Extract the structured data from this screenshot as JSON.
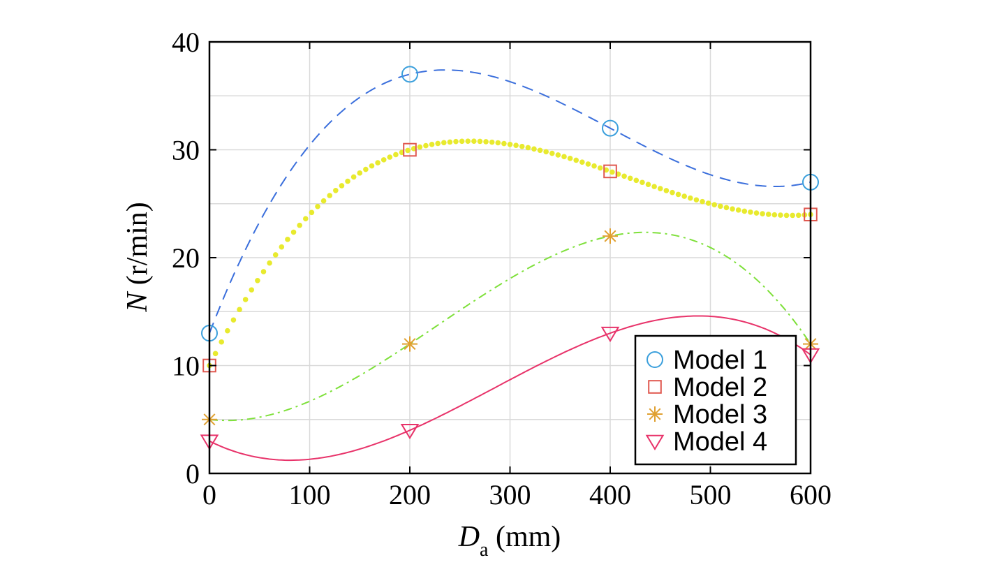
{
  "chart_data": {
    "type": "line",
    "title": "",
    "xlabel": {
      "main": "D",
      "sub": "a",
      "unit": "(mm)"
    },
    "ylabel": {
      "main": "N",
      "unit": "(r/min)"
    },
    "xlim": [
      0,
      600
    ],
    "ylim": [
      0,
      40
    ],
    "xticks": [
      0,
      100,
      200,
      300,
      400,
      500,
      600
    ],
    "yticks": [
      0,
      10,
      20,
      30,
      40
    ],
    "grid": true,
    "legend_position": "bottom-right",
    "series": [
      {
        "name": "Model 1",
        "marker": "circle",
        "line_style": "dashed",
        "marker_color": "#3a9fdc",
        "line_color": "#3b6fdc",
        "x": [
          0,
          200,
          400,
          600
        ],
        "values": [
          13,
          37,
          32,
          27
        ]
      },
      {
        "name": "Model 2",
        "marker": "square",
        "line_style": "dotted",
        "marker_color": "#e0584f",
        "line_color": "#e8ea2e",
        "x": [
          0,
          200,
          400,
          600
        ],
        "values": [
          10,
          30,
          28,
          24
        ]
      },
      {
        "name": "Model 3",
        "marker": "asterisk",
        "line_style": "dashdot",
        "marker_color": "#e0a030",
        "line_color": "#7ee03a",
        "x": [
          0,
          200,
          400,
          600
        ],
        "values": [
          5,
          12,
          22,
          12
        ]
      },
      {
        "name": "Model 4",
        "marker": "triangle-down",
        "line_style": "solid",
        "marker_color": "#e8336a",
        "line_color": "#e8336a",
        "x": [
          0,
          200,
          400,
          600
        ],
        "values": [
          3,
          4,
          13,
          11
        ]
      }
    ]
  }
}
